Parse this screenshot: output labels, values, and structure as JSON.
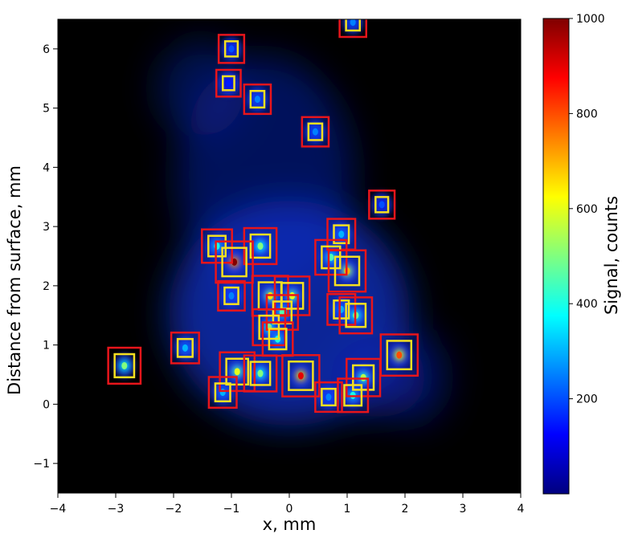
{
  "chart_data": {
    "type": "heatmap",
    "title": "",
    "xlabel": "x, mm",
    "ylabel": "Distance from surface, mm",
    "colorbar_label": "Signal, counts",
    "xlim": [
      -4,
      4
    ],
    "ylim": [
      -1.5,
      6.5
    ],
    "x_ticks": [
      "−4",
      "−3",
      "−2",
      "−1",
      "0",
      "1",
      "2",
      "3",
      "4"
    ],
    "x_tick_values": [
      -4,
      -3,
      -2,
      -1,
      0,
      1,
      2,
      3,
      4
    ],
    "y_ticks": [
      "−1",
      "0",
      "1",
      "2",
      "3",
      "4",
      "5",
      "6"
    ],
    "y_tick_values": [
      -1,
      0,
      1,
      2,
      3,
      4,
      5,
      6
    ],
    "colorbar_ticks": [
      "200",
      "400",
      "600",
      "800",
      "1000"
    ],
    "colorbar_tick_values": [
      200,
      400,
      600,
      800,
      1000
    ],
    "colorbar_range": [
      0,
      1000
    ],
    "colormap": "jet",
    "grid": false,
    "background_color": "#000000",
    "box_colors": {
      "outer": "#e8151b",
      "inner": "#f5e020"
    },
    "features": [
      {
        "x": 1.1,
        "y": 6.45,
        "signal": 250
      },
      {
        "x": -1.0,
        "y": 6.0,
        "signal": 200
      },
      {
        "x": -1.05,
        "y": 5.42,
        "signal": 150
      },
      {
        "x": -0.55,
        "y": 5.15,
        "signal": 250
      },
      {
        "x": 0.45,
        "y": 4.6,
        "signal": 250
      },
      {
        "x": 1.6,
        "y": 3.37,
        "signal": 200
      },
      {
        "x": 0.9,
        "y": 2.87,
        "signal": 300
      },
      {
        "x": -1.25,
        "y": 2.67,
        "signal": 400
      },
      {
        "x": -0.5,
        "y": 2.67,
        "signal": 500
      },
      {
        "x": 0.72,
        "y": 2.48,
        "signal": 450
      },
      {
        "x": -0.95,
        "y": 2.4,
        "signal": 1000
      },
      {
        "x": 1.0,
        "y": 2.25,
        "signal": 700
      },
      {
        "x": -1.0,
        "y": 1.83,
        "signal": 250
      },
      {
        "x": -0.33,
        "y": 1.83,
        "signal": 650
      },
      {
        "x": 0.05,
        "y": 1.83,
        "signal": 600
      },
      {
        "x": 0.9,
        "y": 1.6,
        "signal": 300
      },
      {
        "x": 1.15,
        "y": 1.5,
        "signal": 500
      },
      {
        "x": -0.12,
        "y": 1.55,
        "signal": 450
      },
      {
        "x": -0.35,
        "y": 1.3,
        "signal": 500
      },
      {
        "x": -0.2,
        "y": 1.1,
        "signal": 400
      },
      {
        "x": -1.8,
        "y": 0.95,
        "signal": 300
      },
      {
        "x": 1.9,
        "y": 0.83,
        "signal": 800
      },
      {
        "x": -2.85,
        "y": 0.65,
        "signal": 500
      },
      {
        "x": -0.9,
        "y": 0.55,
        "signal": 600
      },
      {
        "x": -0.5,
        "y": 0.52,
        "signal": 500
      },
      {
        "x": 0.2,
        "y": 0.48,
        "signal": 900
      },
      {
        "x": 1.28,
        "y": 0.45,
        "signal": 550
      },
      {
        "x": -1.15,
        "y": 0.2,
        "signal": 300
      },
      {
        "x": 0.68,
        "y": 0.12,
        "signal": 250
      },
      {
        "x": 1.1,
        "y": 0.15,
        "signal": 400
      }
    ]
  }
}
